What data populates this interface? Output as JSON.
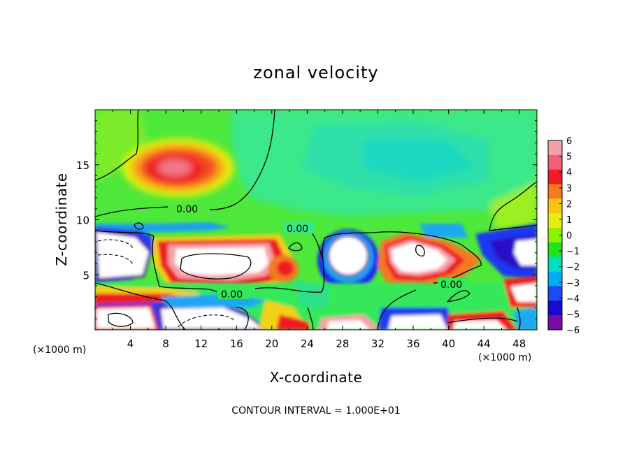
{
  "chart_data": {
    "type": "heatmap",
    "title": "zonal velocity",
    "xlabel": "X-coordinate",
    "ylabel": "Z-coordinate",
    "x_unit": "(×1000 m)",
    "z_unit": "(×1000 m)",
    "xlim": [
      0,
      50
    ],
    "ylim": [
      0,
      20
    ],
    "x_ticks": [
      4,
      8,
      12,
      16,
      20,
      24,
      28,
      32,
      36,
      40,
      44,
      48
    ],
    "y_ticks": [
      5,
      10,
      15
    ],
    "colorbar": {
      "ticks": [
        6,
        5,
        4,
        3,
        2,
        1,
        0,
        -1,
        -2,
        -3,
        -4,
        -5,
        -6
      ],
      "colors": [
        "#f4a0a8",
        "#f0607a",
        "#ee1c24",
        "#f47a20",
        "#f8c418",
        "#e6ee14",
        "#8ef000",
        "#20e020",
        "#00e0c0",
        "#00aef0",
        "#1c4cf0",
        "#1a0ad0",
        "#7a0aa8"
      ]
    },
    "contour_labels": [
      "0.00",
      "0.00",
      "0.00",
      "0.00"
    ],
    "footer": "CONTOUR INTERVAL = 1.000E+01"
  }
}
